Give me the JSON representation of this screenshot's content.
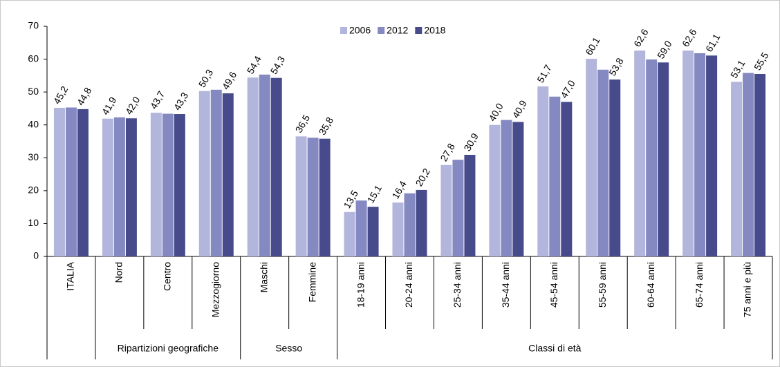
{
  "chart_data": {
    "type": "bar",
    "categories": [
      "ITALIA",
      "Nord",
      "Centro",
      "Mezzogiorno",
      "Maschi",
      "Femmine",
      "18-19 anni",
      "20-24 anni",
      "25-34 anni",
      "35-44 anni",
      "45-54 anni",
      "55-59 anni",
      "60-64 anni",
      "65-74 anni",
      "75 anni e più"
    ],
    "category_groups": [
      null,
      "Ripartizioni geografiche",
      "Ripartizioni geografiche",
      "Ripartizioni geografiche",
      "Sesso",
      "Sesso",
      "Classi di età",
      "Classi di età",
      "Classi di età",
      "Classi di età",
      "Classi di età",
      "Classi di età",
      "Classi di età",
      "Classi di età",
      "Classi di età"
    ],
    "series": [
      {
        "name": "2006",
        "color": "#b3b6dc",
        "values": [
          45.2,
          41.9,
          43.7,
          50.3,
          54.4,
          36.5,
          13.5,
          16.4,
          27.8,
          40.0,
          51.7,
          60.1,
          62.6,
          62.6,
          53.1
        ],
        "value_labels": [
          "45,2",
          "41,9",
          "43,7",
          "50,3",
          "54,4",
          "36,5",
          "13,5",
          "16,4",
          "27,8",
          "40,0",
          "51,7",
          "60,1",
          "62,6",
          "62,6",
          "53,1"
        ]
      },
      {
        "name": "2012",
        "color": "#8589c1",
        "values": [
          45.3,
          42.3,
          43.4,
          50.7,
          55.3,
          36.1,
          17.0,
          19.2,
          29.4,
          41.5,
          48.6,
          56.8,
          59.9,
          61.8,
          55.8
        ]
      },
      {
        "name": "2018",
        "color": "#474b8b",
        "values": [
          44.8,
          42.0,
          43.3,
          49.6,
          54.3,
          35.8,
          15.1,
          20.2,
          30.9,
          40.9,
          47.0,
          53.8,
          59.0,
          61.1,
          55.5
        ],
        "value_labels": [
          "44,8",
          "42,0",
          "43,3",
          "49,6",
          "54,3",
          "35,8",
          "15,1",
          "20,2",
          "30,9",
          "40,9",
          "47,0",
          "53,8",
          "59,0",
          "61,1",
          "55,5"
        ]
      }
    ],
    "ylim": [
      0,
      70
    ],
    "yticks": [
      0,
      10,
      20,
      30,
      40,
      50,
      60,
      70
    ],
    "grid": false,
    "legend": "top"
  }
}
